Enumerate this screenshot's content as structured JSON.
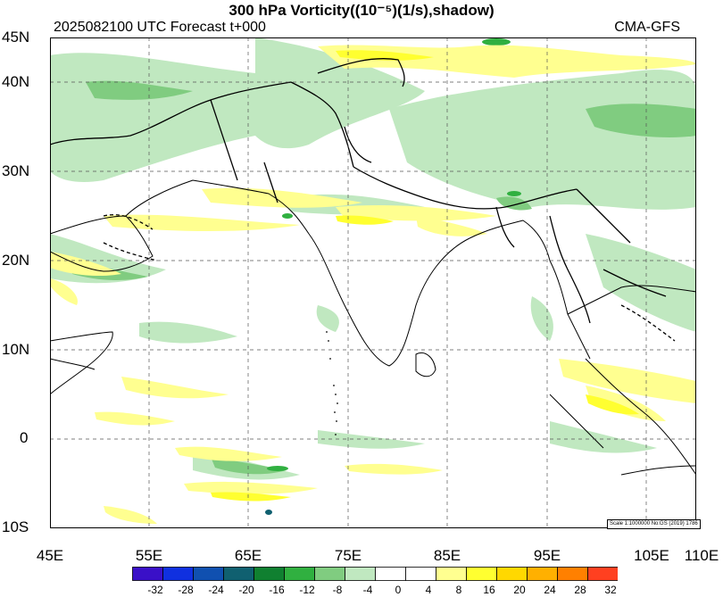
{
  "title": "300 hPa Vorticity((10⁻⁵)(1/s),shadow)",
  "subtitle": "2025082100 UTC Forecast t+000",
  "source": "CMA-GFS",
  "scale_note": "Scale 1:1000000 No:GS (2019) 1786",
  "lat_labels": [
    "45N",
    "40N",
    "30N",
    "20N",
    "10N",
    "0",
    "10S"
  ],
  "lon_labels": [
    "45E",
    "55E",
    "65E",
    "75E",
    "85E",
    "95E",
    "105E",
    "110E"
  ],
  "colorbar": {
    "labels": [
      "-32",
      "-28",
      "-24",
      "-20",
      "-16",
      "-12",
      "-8",
      "-4",
      "0",
      "4",
      "8",
      "16",
      "20",
      "24",
      "28",
      "32"
    ],
    "colors": [
      "#3a10c8",
      "#1030e0",
      "#1050b0",
      "#106070",
      "#108030",
      "#30b040",
      "#80cc80",
      "#c0e8c0",
      "#ffffff",
      "#ffffff",
      "#ffff90",
      "#ffff30",
      "#ffd800",
      "#ffb000",
      "#ff8000",
      "#ff4020"
    ]
  },
  "chart_data": {
    "type": "heatmap",
    "title": "300 hPa Vorticity((10⁻⁵)(1/s),shadow)",
    "lon_range": [
      45,
      110
    ],
    "lat_range": [
      -10,
      45
    ],
    "lon_ticks": [
      45,
      55,
      65,
      75,
      85,
      95,
      105,
      110
    ],
    "lat_ticks": [
      45,
      40,
      30,
      20,
      10,
      0,
      -10
    ],
    "grid": true,
    "levels": [
      -32,
      -28,
      -24,
      -20,
      -16,
      -12,
      -8,
      -4,
      0,
      4,
      8,
      16,
      20,
      24,
      28,
      32
    ]
  }
}
